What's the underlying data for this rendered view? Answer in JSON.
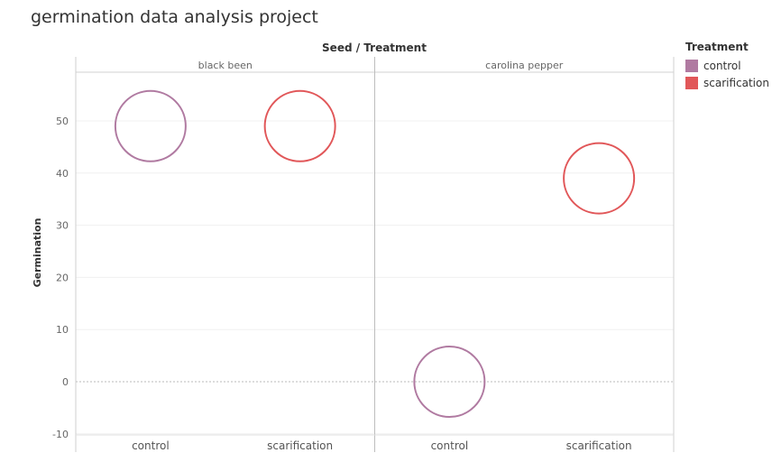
{
  "title": "germination data analysis project",
  "chart_data": {
    "type": "scatter",
    "column_header": "Seed / Treatment",
    "ylabel": "Germination",
    "ylim": [
      -12,
      60
    ],
    "yticks": [
      -10,
      0,
      10,
      20,
      30,
      40,
      50
    ],
    "panels": [
      {
        "name": "black been",
        "categories": [
          "control",
          "scarification"
        ],
        "values": [
          49,
          49
        ]
      },
      {
        "name": "carolina pepper",
        "categories": [
          "control",
          "scarification"
        ],
        "values": [
          0,
          39
        ]
      }
    ],
    "series": [
      {
        "name": "control",
        "color": "#b07aa1"
      },
      {
        "name": "scarification",
        "color": "#e15759"
      }
    ],
    "legend": {
      "title": "Treatment",
      "position": "right"
    },
    "grid": true
  }
}
